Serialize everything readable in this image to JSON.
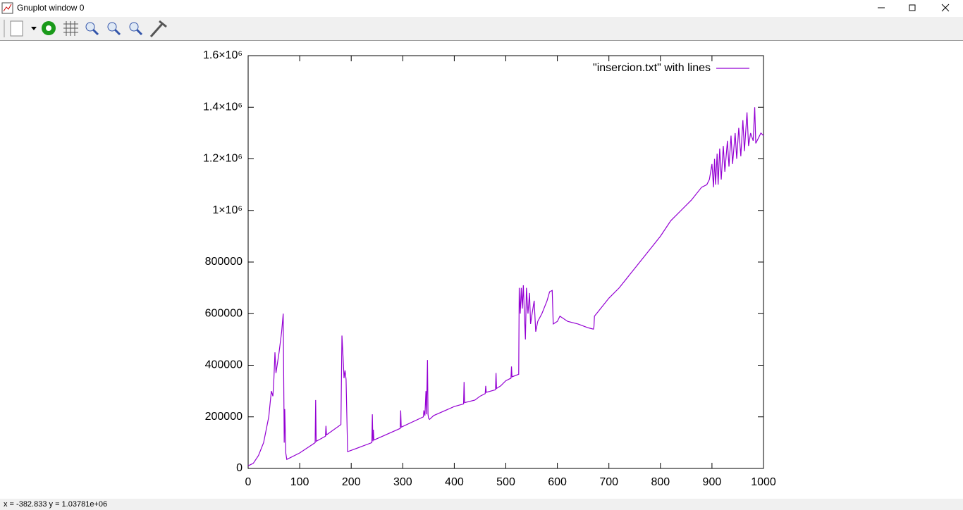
{
  "window": {
    "title": "Gnuplot window 0",
    "status": "x = -382.833 y = 1.03781e+06"
  },
  "chart_data": {
    "type": "line",
    "x": [
      0,
      10,
      20,
      30,
      40,
      45,
      48,
      50,
      52,
      54,
      60,
      65,
      68,
      70,
      71,
      73,
      75,
      100,
      130,
      131,
      132,
      150,
      151,
      152,
      180,
      182,
      185,
      186,
      188,
      190,
      193,
      200,
      240,
      241,
      242,
      243,
      244,
      295,
      296,
      297,
      340,
      341,
      343,
      345,
      346,
      348,
      349,
      350,
      352,
      360,
      400,
      418,
      419,
      420,
      440,
      450,
      460,
      461,
      462,
      480,
      481,
      482,
      490,
      500,
      510,
      511,
      512,
      525,
      526,
      528,
      530,
      532,
      534,
      536,
      538,
      540,
      543,
      546,
      548,
      551,
      555,
      558,
      562,
      570,
      580,
      585,
      590,
      592,
      600,
      605,
      620,
      640,
      660,
      670,
      671,
      672,
      680,
      700,
      720,
      740,
      760,
      780,
      800,
      820,
      840,
      860,
      880,
      890,
      895,
      900,
      903,
      905,
      907,
      910,
      912,
      915,
      918,
      922,
      925,
      930,
      933,
      937,
      940,
      945,
      948,
      952,
      956,
      960,
      963,
      968,
      971,
      975,
      980,
      983,
      985,
      990,
      995,
      1000
    ],
    "series": [
      {
        "name": "\"insercion.txt\" with lines",
        "color": "#9400d3",
        "values": [
          10000,
          20000,
          50000,
          100000,
          200000,
          300000,
          280000,
          350000,
          450000,
          370000,
          450000,
          530000,
          600000,
          100000,
          230000,
          60000,
          35000,
          60000,
          100000,
          265000,
          105000,
          125000,
          165000,
          130000,
          170000,
          515000,
          400000,
          350000,
          380000,
          345000,
          65000,
          70000,
          100000,
          210000,
          105000,
          150000,
          110000,
          155000,
          225000,
          160000,
          200000,
          225000,
          205000,
          300000,
          210000,
          420000,
          210000,
          195000,
          190000,
          205000,
          240000,
          250000,
          335000,
          255000,
          265000,
          280000,
          290000,
          320000,
          295000,
          305000,
          370000,
          310000,
          320000,
          340000,
          350000,
          395000,
          355000,
          365000,
          700000,
          600000,
          700000,
          620000,
          710000,
          600000,
          500000,
          700000,
          600000,
          680000,
          560000,
          600000,
          650000,
          530000,
          570000,
          600000,
          650000,
          685000,
          690000,
          560000,
          570000,
          590000,
          570000,
          560000,
          545000,
          540000,
          550000,
          590000,
          610000,
          660000,
          700000,
          750000,
          800000,
          850000,
          900000,
          960000,
          1000000,
          1040000,
          1090000,
          1100000,
          1120000,
          1180000,
          1090000,
          1200000,
          1100000,
          1220000,
          1100000,
          1240000,
          1120000,
          1250000,
          1150000,
          1270000,
          1170000,
          1290000,
          1180000,
          1300000,
          1200000,
          1320000,
          1210000,
          1350000,
          1230000,
          1380000,
          1250000,
          1300000,
          1270000,
          1400000,
          1260000,
          1280000,
          1300000,
          1290000
        ]
      }
    ],
    "xlim": [
      0,
      1000
    ],
    "ylim": [
      0,
      1600000
    ],
    "xticks": [
      0,
      100,
      200,
      300,
      400,
      500,
      600,
      700,
      800,
      900,
      1000
    ],
    "yticks": [
      0,
      200000,
      400000,
      600000,
      800000,
      {
        "value": 1000000,
        "label": "1×10⁶"
      },
      {
        "value": 1200000,
        "label": "1.2×10⁶"
      },
      {
        "value": 1400000,
        "label": "1.4×10⁶"
      },
      {
        "value": 1600000,
        "label": "1.6×10⁶"
      }
    ],
    "legend": "top-right"
  }
}
